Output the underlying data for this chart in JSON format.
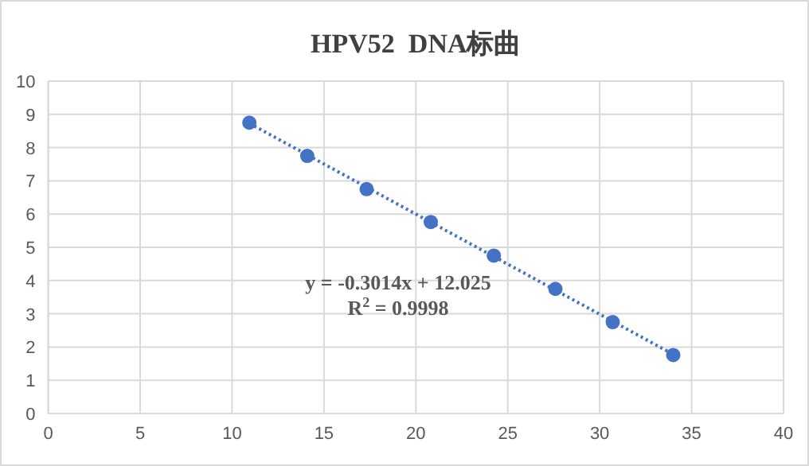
{
  "chart_data": {
    "type": "scatter",
    "title": "HPV52  DNA标曲",
    "xlim": [
      0,
      40
    ],
    "xticks": [
      0,
      5,
      10,
      15,
      20,
      25,
      30,
      35,
      40
    ],
    "ylim": [
      0,
      10
    ],
    "yticks": [
      0,
      1,
      2,
      3,
      4,
      5,
      6,
      7,
      8,
      9,
      10
    ],
    "grid": true,
    "series": [
      {
        "type": "scatter",
        "color": "#4472c4",
        "marker": "circle",
        "x": [
          10.94,
          14.09,
          17.32,
          20.81,
          24.24,
          27.59,
          30.71,
          34.0
        ],
        "values": [
          8.75,
          7.75,
          6.75,
          5.76,
          4.75,
          3.75,
          2.75,
          1.76
        ]
      },
      {
        "type": "line",
        "color": "#4472c4",
        "line_style": "dotted",
        "x": [
          10.94,
          34.0
        ],
        "values": [
          8.73,
          1.78
        ]
      }
    ],
    "annotations": [
      "y = -0.3014x + 12.025",
      "R$^{2}$ = 0.9998"
    ]
  }
}
